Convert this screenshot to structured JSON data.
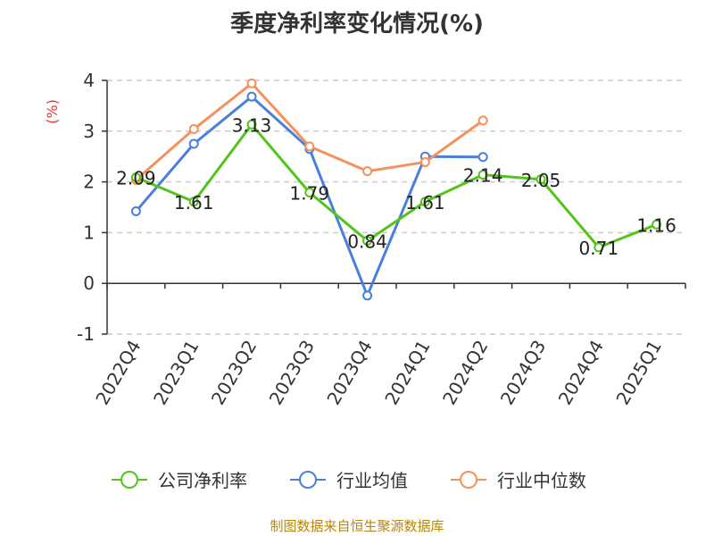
{
  "title": "季度净利率变化情况(%)",
  "source": "制图数据来自恒生聚源数据库",
  "chart_data": {
    "type": "line",
    "title": "季度净利率变化情况(%)",
    "ylabel": "(%)",
    "ylim": [
      -1,
      4
    ],
    "yticks": [
      4,
      3,
      2,
      1,
      0,
      -1
    ],
    "grid": true,
    "legend_position": "bottom",
    "categories": [
      "2022Q4",
      "2023Q1",
      "2023Q2",
      "2023Q3",
      "2023Q4",
      "2024Q1",
      "2024Q2",
      "2024Q3",
      "2024Q4",
      "2025Q1"
    ],
    "series": [
      {
        "name": "公司净利率",
        "color": "#52c41a",
        "labels": true,
        "values": [
          2.09,
          1.61,
          3.13,
          1.79,
          0.84,
          1.61,
          2.14,
          2.05,
          0.71,
          1.16
        ]
      },
      {
        "name": "行业均值",
        "color": "#4a7fdc",
        "labels": false,
        "values": [
          1.42,
          2.75,
          3.68,
          2.65,
          -0.24,
          2.5,
          2.49,
          null,
          null,
          null
        ]
      },
      {
        "name": "行业中位数",
        "color": "#f5915a",
        "labels": false,
        "values": [
          2.04,
          3.04,
          3.94,
          2.7,
          2.21,
          2.39,
          3.21,
          null,
          null,
          null
        ]
      }
    ]
  }
}
